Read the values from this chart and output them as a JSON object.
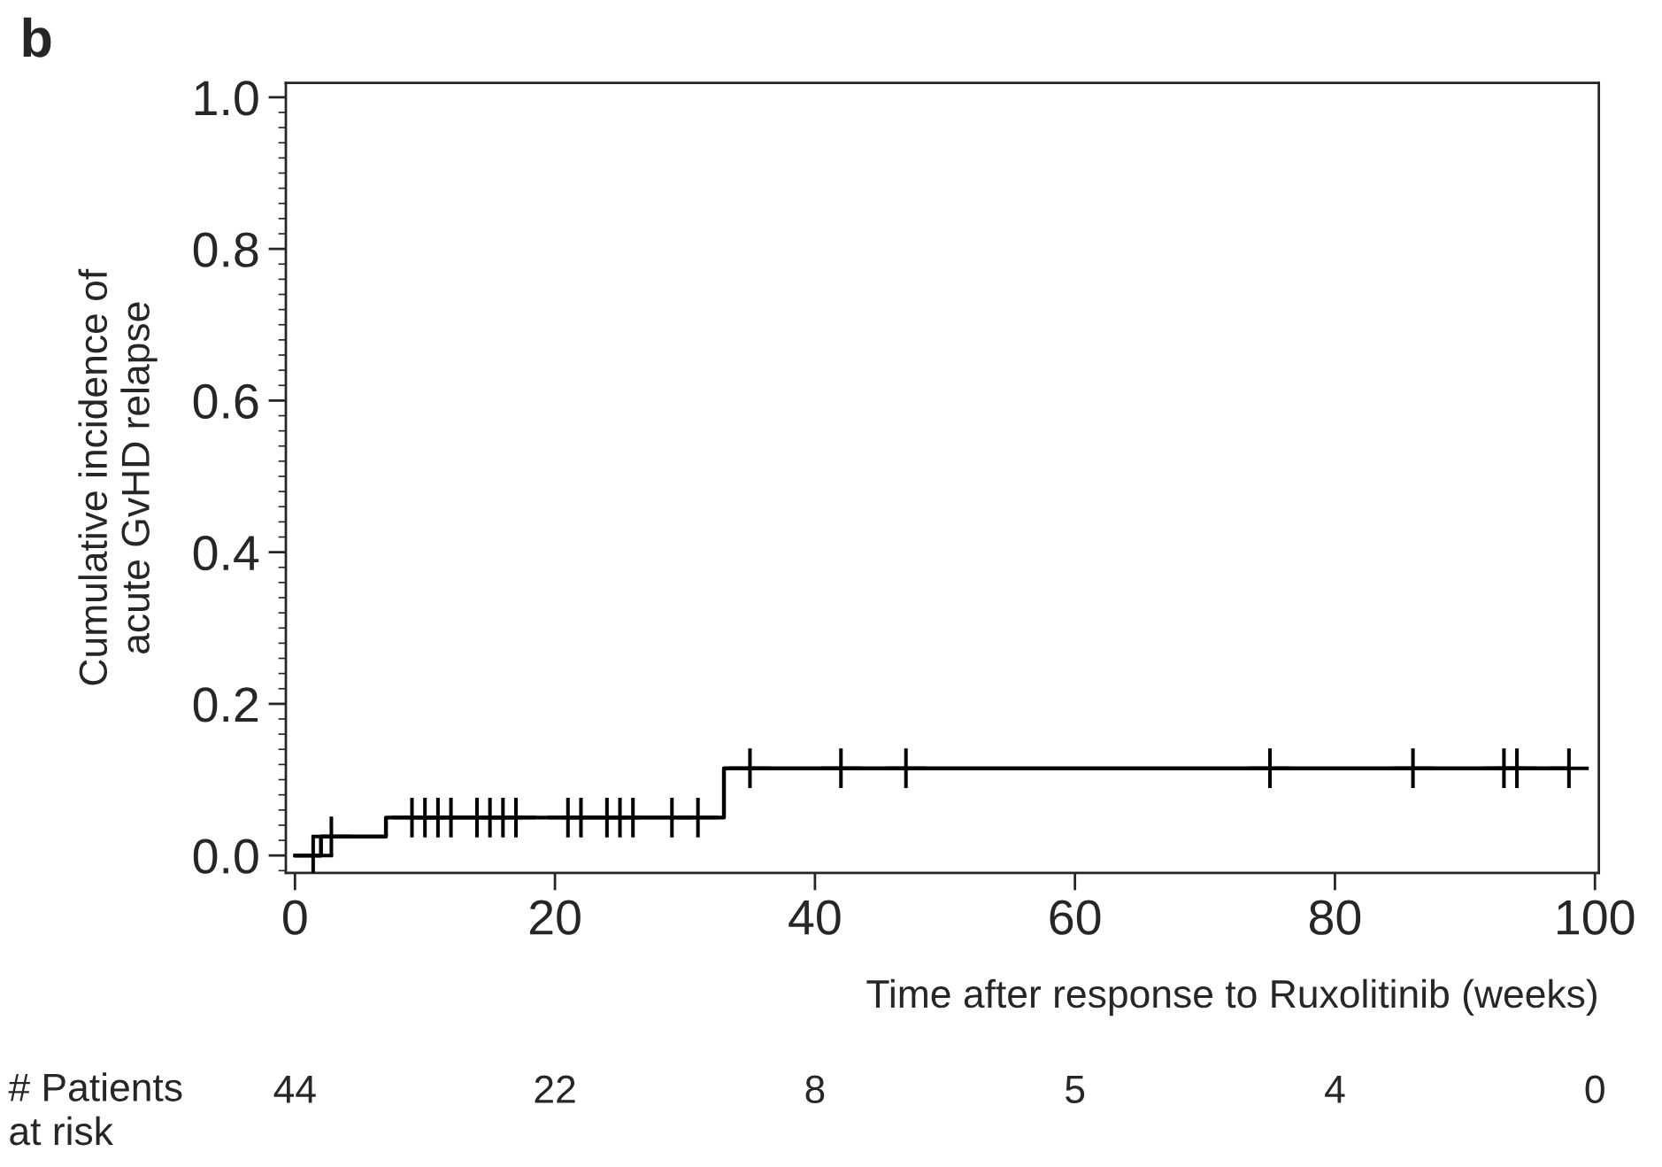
{
  "chart_data": {
    "type": "step",
    "xlabel": "Time after response to Ruxolitinib (weeks)",
    "ylabel": "Cumulative incidence of\nacute GvHD relapse",
    "annotations": [
      "b",
      "# Patients\nat risk",
      "44",
      "22",
      "8",
      "5",
      "4",
      "0"
    ],
    "series": [
      {
        "color": "#000000",
        "x": [
          0,
          2,
          7,
          33,
          98
        ],
        "values": [
          0,
          0.025,
          0.05,
          0.115,
          0.115
        ]
      },
      {
        "type": "scatter",
        "color": "#000000",
        "marker": "cross",
        "x": [
          1.4,
          2.8,
          9,
          10,
          11,
          12,
          14,
          15,
          16,
          17,
          21,
          22,
          24,
          25,
          26,
          29,
          31,
          35,
          42,
          47,
          75,
          86,
          93,
          94,
          98
        ],
        "values": [
          0,
          0.025,
          0.05,
          0.05,
          0.05,
          0.05,
          0.05,
          0.05,
          0.05,
          0.05,
          0.05,
          0.05,
          0.05,
          0.05,
          0.05,
          0.05,
          0.05,
          0.115,
          0.115,
          0.115,
          0.115,
          0.115,
          0.115,
          0.115,
          0.115
        ]
      }
    ],
    "xlim": [
      -0.7,
      100.3
    ],
    "xticks": [
      0,
      20,
      40,
      60,
      80,
      100
    ],
    "ylim": [
      -0.023,
      1.019
    ],
    "yticks": [
      {
        "value": 0,
        "label": "0.0"
      },
      0.2,
      0.4,
      0.6,
      0.8,
      {
        "value": 1,
        "label": "1.0"
      }
    ],
    "grid": false,
    "legend": false
  }
}
